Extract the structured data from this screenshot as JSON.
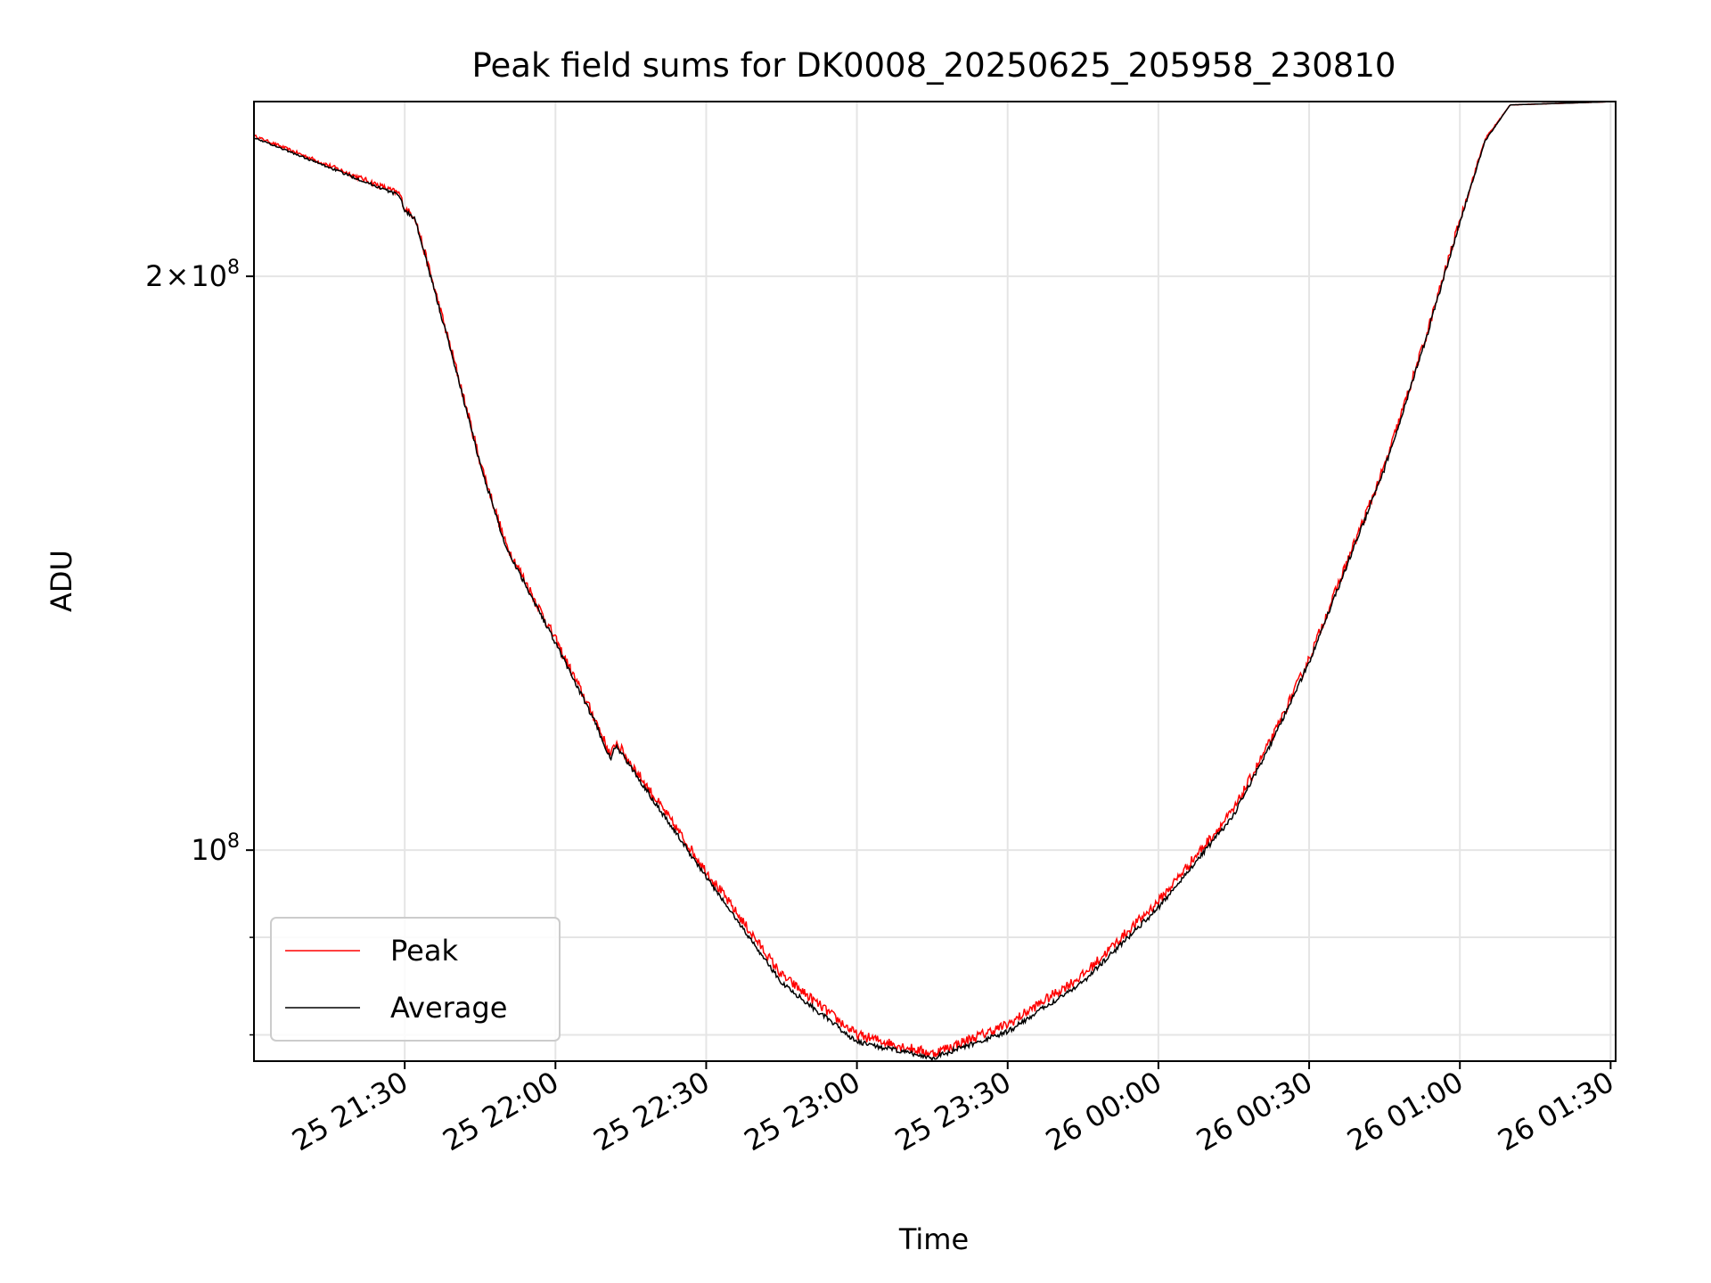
{
  "chart_data": {
    "type": "line",
    "title": "Peak field sums for DK0008_20250625_205958_230810",
    "xlabel": "Time",
    "ylabel": "ADU",
    "y_scale": "log",
    "xlim": [
      "2025-06-25 21:00",
      "2025-06-26 01:31"
    ],
    "ylim": [
      77500000,
      247000000
    ],
    "x_ticks": [
      {
        "value": "2025-06-25 21:30",
        "label": "25 21:30"
      },
      {
        "value": "2025-06-25 22:00",
        "label": "25 22:00"
      },
      {
        "value": "2025-06-25 22:30",
        "label": "25 22:30"
      },
      {
        "value": "2025-06-25 23:00",
        "label": "25 23:00"
      },
      {
        "value": "2025-06-25 23:30",
        "label": "25 23:30"
      },
      {
        "value": "2025-06-26 00:00",
        "label": "26 00:00"
      },
      {
        "value": "2025-06-26 00:30",
        "label": "26 00:30"
      },
      {
        "value": "2025-06-26 01:00",
        "label": "26 01:00"
      },
      {
        "value": "2025-06-26 01:30",
        "label": "26 01:30"
      }
    ],
    "y_ticks": [
      {
        "value": 200000000,
        "mantissa": "2",
        "times": "×",
        "base": "10",
        "exp": "8"
      },
      {
        "value": 100000000,
        "mantissa": "",
        "times": "",
        "base": "10",
        "exp": "8"
      }
    ],
    "y_minor_ticks": [
      80000000,
      90000000
    ],
    "grid": true,
    "legend": {
      "position": "lower-left"
    },
    "series": [
      {
        "name": "Peak",
        "color": "#ff0000",
        "noise": 0.006,
        "x": [
          "2025-06-25 21:00",
          "2025-06-25 21:29",
          "2025-06-25 21:30",
          "2025-06-25 21:32",
          "2025-06-25 21:40",
          "2025-06-25 21:45",
          "2025-06-25 21:50",
          "2025-06-25 22:00",
          "2025-06-25 22:08",
          "2025-06-25 22:11",
          "2025-06-25 22:12",
          "2025-06-25 22:30",
          "2025-06-25 22:45",
          "2025-06-25 23:00",
          "2025-06-25 23:15",
          "2025-06-25 23:30",
          "2025-06-25 23:45",
          "2025-06-26 00:00",
          "2025-06-26 00:15",
          "2025-06-26 00:23",
          "2025-06-26 00:30",
          "2025-06-26 00:45",
          "2025-06-26 00:53",
          "2025-06-26 01:00",
          "2025-06-26 01:05",
          "2025-06-26 01:10",
          "2025-06-26 01:31"
        ],
        "y": [
          237000000,
          221000000,
          217000000,
          215000000,
          180000000,
          160000000,
          145000000,
          129000000,
          117000000,
          112000000,
          114000000,
          97500000,
          86000000,
          80000000,
          78200000,
          81000000,
          86000000,
          94000000,
          105000000,
          115000000,
          126000000,
          159000000,
          185000000,
          214000000,
          236000000,
          246000000,
          247000000
        ]
      },
      {
        "name": "Average",
        "color": "#000000",
        "noise": 0.003,
        "x": [
          "2025-06-25 21:00",
          "2025-06-25 21:29",
          "2025-06-25 21:30",
          "2025-06-25 21:32",
          "2025-06-25 21:40",
          "2025-06-25 21:45",
          "2025-06-25 21:50",
          "2025-06-25 22:00",
          "2025-06-25 22:08",
          "2025-06-25 22:11",
          "2025-06-25 22:12",
          "2025-06-25 22:30",
          "2025-06-25 22:45",
          "2025-06-25 23:00",
          "2025-06-25 23:15",
          "2025-06-25 23:30",
          "2025-06-25 23:45",
          "2025-06-26 00:00",
          "2025-06-26 00:15",
          "2025-06-26 00:23",
          "2025-06-26 00:30",
          "2025-06-26 00:45",
          "2025-06-26 00:53",
          "2025-06-26 01:00",
          "2025-06-26 01:05",
          "2025-06-26 01:10",
          "2025-06-26 01:31"
        ],
        "y": [
          236500000,
          220500000,
          216500000,
          214500000,
          179500000,
          159500000,
          144500000,
          128500000,
          116500000,
          111500000,
          113500000,
          96800000,
          85200000,
          79300000,
          77800000,
          80300000,
          85300000,
          93300000,
          104300000,
          114500000,
          125500000,
          158500000,
          184500000,
          213500000,
          235500000,
          246000000,
          247000000
        ]
      }
    ]
  }
}
